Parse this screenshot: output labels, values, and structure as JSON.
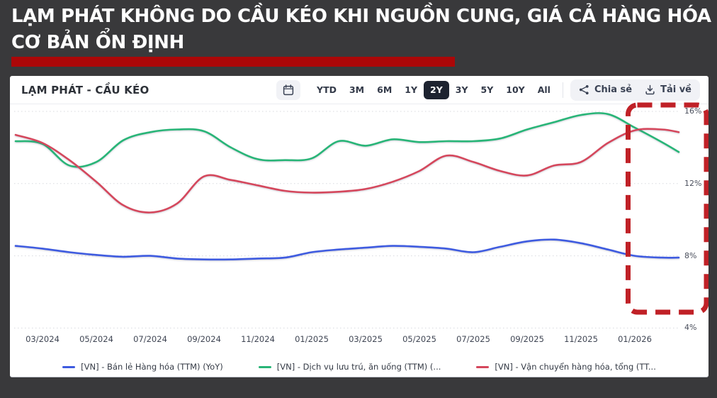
{
  "page": {
    "headline": "LẠM PHÁT KHÔNG DO CẦU KÉO KHI NGUỒN CUNG, GIÁ CẢ HÀNG HÓA CƠ BẢN ỔN ĐỊNH"
  },
  "panel": {
    "title": "LẠM PHÁT - CẦU KÉO",
    "toolbar": {
      "calendar_icon": "calendar-icon",
      "ranges": [
        "YTD",
        "3M",
        "6M",
        "1Y",
        "2Y",
        "3Y",
        "5Y",
        "10Y",
        "All"
      ],
      "selected_range": "2Y",
      "share_label": "Chia sẻ",
      "share_icon": "share-icon",
      "download_label": "Tải về",
      "download_icon": "download-icon"
    }
  },
  "chart_data": {
    "type": "line",
    "title": "LẠM PHÁT - CẦU KÉO",
    "x": [
      "02/2024",
      "03/2024",
      "04/2024",
      "05/2024",
      "06/2024",
      "07/2024",
      "08/2024",
      "09/2024",
      "10/2024",
      "11/2024",
      "12/2024",
      "01/2025",
      "02/2025",
      "03/2025",
      "04/2025",
      "05/2025",
      "06/2025",
      "07/2025",
      "08/2025",
      "09/2025",
      "10/2025",
      "11/2025",
      "12/2025",
      "01/2026",
      "02/2026",
      "03/2026"
    ],
    "x_last_partial": true,
    "x_tick_labels": [
      "03/2024",
      "05/2024",
      "07/2024",
      "09/2024",
      "11/2024",
      "01/2025",
      "03/2025",
      "05/2025",
      "07/2025",
      "09/2025",
      "11/2025",
      "01/2026"
    ],
    "ylim": [
      4,
      16
    ],
    "y_ticks": [
      16,
      12,
      8,
      4
    ],
    "y_tick_labels": [
      "16%",
      "12%",
      "8%",
      "4%"
    ],
    "y_axis_side": "right",
    "grid": "horizontal-dotted",
    "legend_position": "bottom",
    "series": [
      {
        "name": "[VN] - Bán lẻ Hàng hóa (TTM) (YoY)",
        "color": "#3e5be0",
        "values": [
          8.55,
          8.4,
          8.2,
          8.05,
          7.95,
          8.0,
          7.85,
          7.8,
          7.8,
          7.85,
          7.9,
          8.2,
          8.35,
          8.45,
          8.55,
          8.5,
          8.4,
          8.2,
          8.5,
          8.8,
          8.9,
          8.7,
          8.35,
          8.0,
          7.9,
          7.9
        ]
      },
      {
        "name": "[VN] - Dịch vụ lưu trú, ăn uống (TTM) (...",
        "color": "#28b577",
        "values": [
          14.35,
          14.2,
          13.0,
          13.2,
          14.4,
          14.85,
          15.0,
          14.9,
          14.0,
          13.35,
          13.3,
          13.4,
          14.35,
          14.1,
          14.45,
          14.3,
          14.35,
          14.35,
          14.5,
          15.0,
          15.4,
          15.8,
          15.85,
          15.1,
          14.3,
          13.75
        ]
      },
      {
        "name": "[VN] - Vận chuyển hàng hóa, tổng (TT...",
        "color": "#d5475c",
        "values": [
          14.7,
          14.25,
          13.3,
          12.1,
          10.8,
          10.4,
          10.9,
          12.4,
          12.2,
          11.9,
          11.6,
          11.5,
          11.55,
          11.7,
          12.1,
          12.7,
          13.55,
          13.2,
          12.7,
          12.45,
          13.0,
          13.2,
          14.25,
          14.95,
          15.0,
          14.85
        ]
      }
    ],
    "annotation": {
      "type": "dashed-rect",
      "purpose": "highlight-recent-period",
      "from": "12/2025",
      "to": "03/2026",
      "color": "#c02127"
    }
  },
  "colors": {
    "page_bg": "#39393b",
    "headline_text": "#ffffff",
    "accent_bar_red": "#ab0708",
    "panel_bg": "#ffffff",
    "selected_range_bg": "#1d2330",
    "annotation_red": "#c02127"
  }
}
